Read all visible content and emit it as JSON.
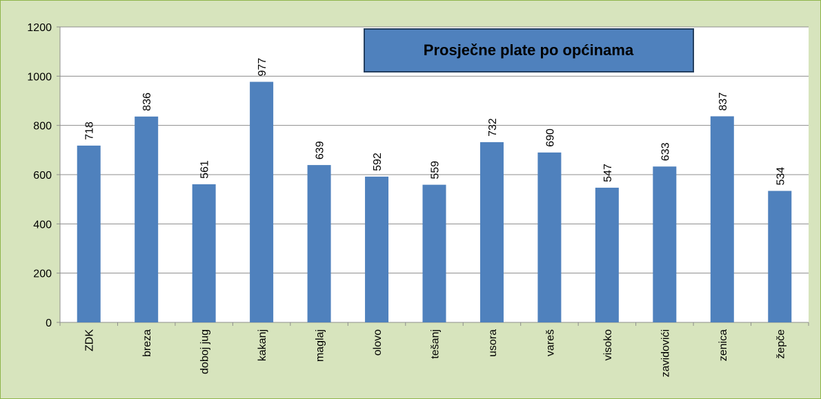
{
  "chart_data": {
    "type": "bar",
    "title": "Prosječne plate po općinama",
    "categories": [
      "ZDK",
      "breza",
      "doboj jug",
      "kakanj",
      "maglaj",
      "olovo",
      "tešanj",
      "usora",
      "vareš",
      "visoko",
      "zavidovići",
      "zenica",
      "žepče"
    ],
    "values": [
      718,
      836,
      561,
      977,
      639,
      592,
      559,
      732,
      690,
      547,
      633,
      837,
      534
    ],
    "color": "#4f81bd",
    "ylim": [
      0,
      1200
    ],
    "yticks": [
      0,
      200,
      400,
      600,
      800,
      1000,
      1200
    ],
    "grid": true
  }
}
